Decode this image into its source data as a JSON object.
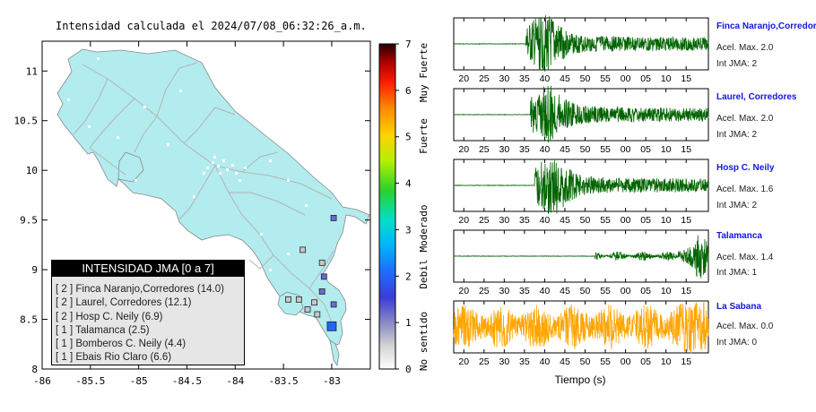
{
  "map": {
    "title": "Intensidad calculada el 2024/07/08_06:32:26_a.m.",
    "x_ticks": [
      "-86",
      "-85.5",
      "-85",
      "-84.5",
      "-84",
      "-83.5",
      "-83"
    ],
    "y_ticks": [
      "11",
      "10.5",
      "10",
      "9.5",
      "9",
      "8.5",
      "8"
    ],
    "colorbar_ticks": [
      "7",
      "6",
      "5",
      "4",
      "3",
      "2",
      "1",
      "0"
    ],
    "colorbar_labels": [
      "Muy Fuerte",
      "Fuerte",
      "Moderado",
      "Debil",
      "No sentido"
    ],
    "land_color": "#b2ecee",
    "legend": {
      "title": "INTENSIDAD JMA [0 a 7]",
      "items": [
        "[ 2 ]  Finca Naranjo,Corredores (14.0)",
        "[ 2 ]  Laurel, Corredores (12.1)",
        "[ 2 ]  Hosp C. Neily (6.9)",
        "[ 1 ]  Talamanca (2.5)",
        "[ 1 ]  Bomberos C. Neily (4.4)",
        "[ 1 ]  Ebais Rio Claro (6.6)"
      ]
    }
  },
  "waveforms": {
    "x_ticks": [
      "20",
      "25",
      "30",
      "35",
      "40",
      "45",
      "50",
      "55",
      "00",
      "05",
      "10",
      "15"
    ],
    "xlabel": "Tiempo (s)",
    "stations": [
      {
        "name": "Finca Naranjo,Corredores",
        "accel": "Acel. Max. 2.0",
        "int": "Int JMA: 2",
        "color": "#006400",
        "onset": 35.3,
        "peak": 40
      },
      {
        "name": "Laurel, Corredores",
        "accel": "Acel. Max. 2.0",
        "int": "Int JMA: 2",
        "color": "#006400",
        "onset": 36.5,
        "peak": 40.8
      },
      {
        "name": "Hosp C. Neily",
        "accel": "Acel. Max. 1.6",
        "int": "Int JMA: 2",
        "color": "#006400",
        "onset": 37.5,
        "peak": 42
      },
      {
        "name": "Talamanca",
        "accel": "Acel. Max. 1.4",
        "int": "Int JMA: 1",
        "color": "#006400",
        "onset": 52.5,
        "peak": 78.5
      },
      {
        "name": "La Sabana",
        "accel": "Acel. Max. 0.0",
        "int": "Int JMA: 0",
        "color": "#ffa500",
        "onset": 17,
        "peak": 50
      }
    ]
  },
  "chart_data": [
    {
      "type": "scatter",
      "title": "Intensidad calculada el 2024/07/08_06:32:26_a.m.",
      "xlim": [
        -86,
        -82.6
      ],
      "ylim": [
        8,
        11.3
      ],
      "colorbar": {
        "min": 0,
        "max": 7,
        "labels": [
          "No sentido",
          "Debil",
          "Moderado",
          "Fuerte",
          "Muy Fuerte"
        ]
      },
      "stations": [
        {
          "name": "Finca Naranjo,Corredores",
          "jma": 2,
          "value": 14.0
        },
        {
          "name": "Laurel, Corredores",
          "jma": 2,
          "value": 12.1
        },
        {
          "name": "Hosp C. Neily",
          "jma": 2,
          "value": 6.9
        },
        {
          "name": "Talamanca",
          "jma": 1,
          "value": 2.5
        },
        {
          "name": "Bomberos C. Neily",
          "jma": 1,
          "value": 4.4
        },
        {
          "name": "Ebais Rio Claro",
          "jma": 1,
          "value": 6.6
        }
      ],
      "markers": [
        {
          "lon": -82.98,
          "lat": 9.52,
          "jma": 1
        },
        {
          "lon": -83.08,
          "lat": 8.93,
          "jma": 1
        },
        {
          "lon": -83.1,
          "lat": 8.78,
          "jma": 1
        },
        {
          "lon": -82.98,
          "lat": 8.65,
          "jma": 1
        },
        {
          "lon": -83.18,
          "lat": 8.67,
          "jma": 0
        },
        {
          "lon": -83.34,
          "lat": 8.7,
          "jma": 0
        },
        {
          "lon": -83.45,
          "lat": 8.7,
          "jma": 0
        },
        {
          "lon": -83.0,
          "lat": 8.43,
          "jma": 2
        },
        {
          "lon": -83.15,
          "lat": 8.55,
          "jma": 0
        },
        {
          "lon": -83.25,
          "lat": 8.6,
          "jma": 0
        },
        {
          "lon": -83.1,
          "lat": 9.07,
          "jma": 0
        },
        {
          "lon": -83.3,
          "lat": 9.2,
          "jma": 0
        }
      ]
    },
    {
      "type": "line",
      "xlabel": "Tiempo (s)",
      "x_ticks": [
        "20",
        "25",
        "30",
        "35",
        "40",
        "45",
        "50",
        "55",
        "00",
        "05",
        "10",
        "15"
      ],
      "xlim": [
        17.5,
        80.5
      ],
      "series": [
        {
          "name": "Finca Naranjo,Corredores",
          "peak_accel": 2.0,
          "jma": 2
        },
        {
          "name": "Laurel, Corredores",
          "peak_accel": 2.0,
          "jma": 2
        },
        {
          "name": "Hosp C. Neily",
          "peak_accel": 1.6,
          "jma": 2
        },
        {
          "name": "Talamanca",
          "peak_accel": 1.4,
          "jma": 1
        },
        {
          "name": "La Sabana",
          "peak_accel": 0.0,
          "jma": 0
        }
      ]
    }
  ]
}
